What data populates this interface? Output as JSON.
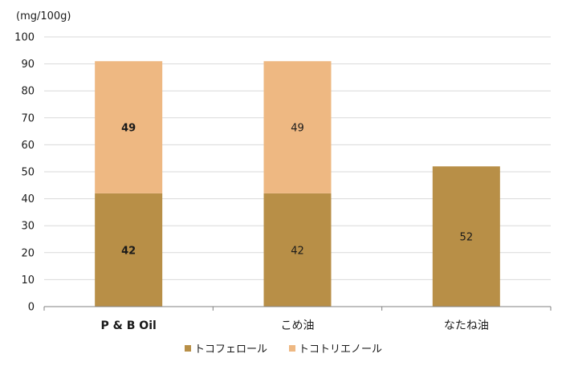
{
  "chart_data": {
    "type": "bar",
    "stacked": true,
    "unit_label": "(mg/100g)",
    "categories": [
      "P & B Oil",
      "こめ油",
      "なたね油"
    ],
    "series": [
      {
        "name": "トコフェロール",
        "values": [
          42,
          42,
          52
        ],
        "color": "#b88f47"
      },
      {
        "name": "トコトリエノール",
        "values": [
          49,
          49,
          0
        ],
        "color": "#eeb882"
      }
    ],
    "ylim": [
      0,
      100
    ],
    "yticks": [
      0,
      10,
      20,
      30,
      40,
      50,
      60,
      70,
      80,
      90,
      100
    ],
    "grid": true,
    "legend_position": "bottom",
    "bold_category": "P & B Oil"
  }
}
